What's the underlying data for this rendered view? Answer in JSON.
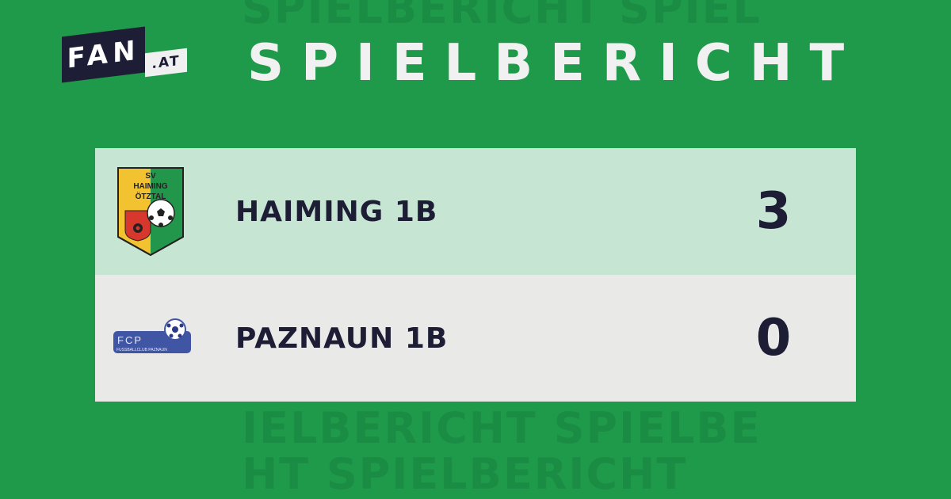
{
  "brand": {
    "logo_main": "FAN",
    "logo_suffix": ".AT"
  },
  "header": {
    "title": "SPIELBERICHT",
    "watermark_text": "SPIELBERICHT"
  },
  "colors": {
    "background": "#1f9a4b",
    "home_row": "#c6e5d3",
    "away_row": "#e9e9e8",
    "text": "#1d1d35"
  },
  "match": {
    "home": {
      "name": "HAIMING 1B",
      "score": "3",
      "crest_text": [
        "SV",
        "HAIMING",
        "ÖTZTAL"
      ]
    },
    "away": {
      "name": "PAZNAUN 1B",
      "score": "0",
      "crest_text": [
        "FCP",
        "FUSSBALLCLUB PAZNAUN"
      ]
    }
  }
}
